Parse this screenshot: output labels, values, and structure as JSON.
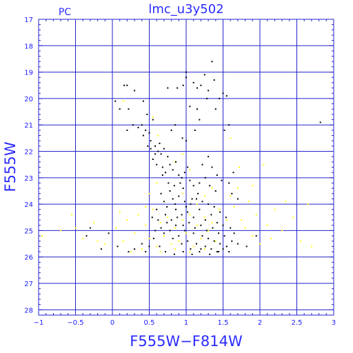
{
  "chart_data": {
    "type": "scatter",
    "title": "lmc_u3y502",
    "corner_label": "PC",
    "xlabel": "F555W−F814W",
    "ylabel": "F555W",
    "xlim": [
      -1,
      3
    ],
    "ylim": [
      28.2,
      17
    ],
    "y_inverted": true,
    "grid": true,
    "x_ticks": [
      -1,
      -0.5,
      0,
      0.5,
      1,
      1.5,
      2,
      2.5,
      3
    ],
    "x_tick_labels": [
      "−1",
      "−0.5",
      "0",
      "0.5",
      "1",
      "1.5",
      "2",
      "2.5",
      "3"
    ],
    "y_ticks": [
      17,
      18,
      19,
      20,
      21,
      22,
      23,
      24,
      25,
      26,
      27,
      28
    ],
    "y_tick_labels": [
      "17",
      "18",
      "19",
      "20",
      "21",
      "22",
      "23",
      "24",
      "25",
      "26",
      "27",
      "28"
    ],
    "colors": {
      "axes": "#2222cc",
      "grid": "#2222cc",
      "text": "#2a2aff"
    },
    "series": [
      {
        "color": "#000000",
        "points": [
          [
            0.04,
            20.1
          ],
          [
            0.16,
            19.5
          ],
          [
            0.2,
            19.5
          ],
          [
            0.3,
            19.7
          ],
          [
            0.1,
            20.4
          ],
          [
            0.22,
            20.4
          ],
          [
            0.42,
            20.1
          ],
          [
            0.47,
            20.6
          ],
          [
            0.55,
            20.8
          ],
          [
            0.28,
            21.0
          ],
          [
            0.2,
            21.2
          ],
          [
            0.35,
            21.1
          ],
          [
            0.4,
            21.0
          ],
          [
            0.45,
            21.2
          ],
          [
            0.42,
            21.4
          ],
          [
            0.5,
            21.3
          ],
          [
            0.52,
            21.6
          ],
          [
            0.48,
            21.8
          ],
          [
            0.58,
            21.8
          ],
          [
            0.62,
            22.0
          ],
          [
            0.66,
            22.1
          ],
          [
            0.7,
            21.9
          ],
          [
            0.75,
            22.2
          ],
          [
            0.55,
            22.3
          ],
          [
            0.6,
            22.5
          ],
          [
            0.68,
            22.6
          ],
          [
            0.72,
            22.8
          ],
          [
            0.78,
            22.5
          ],
          [
            0.82,
            22.7
          ],
          [
            0.86,
            22.4
          ],
          [
            0.9,
            22.9
          ],
          [
            0.94,
            23.0
          ],
          [
            0.98,
            22.8
          ],
          [
            1.02,
            22.6
          ],
          [
            1.05,
            23.1
          ],
          [
            1.1,
            23.3
          ],
          [
            1.0,
            21.6
          ],
          [
            0.95,
            21.5
          ],
          [
            1.05,
            20.3
          ],
          [
            1.15,
            20.4
          ],
          [
            1.2,
            19.5
          ],
          [
            1.3,
            19.7
          ],
          [
            1.38,
            19.3
          ],
          [
            1.28,
            20.0
          ],
          [
            1.0,
            19.2
          ],
          [
            1.0,
            19.0
          ],
          [
            1.1,
            19.4
          ],
          [
            1.15,
            19.6
          ],
          [
            0.75,
            19.6
          ],
          [
            0.88,
            19.6
          ],
          [
            0.96,
            19.5
          ],
          [
            1.25,
            19.1
          ],
          [
            1.45,
            20.0
          ],
          [
            1.5,
            19.8
          ],
          [
            1.55,
            19.9
          ],
          [
            1.4,
            20.4
          ],
          [
            1.52,
            21.2
          ],
          [
            1.58,
            21.0
          ],
          [
            1.35,
            18.6
          ],
          [
            2.82,
            20.9
          ],
          [
            1.64,
            22.8
          ],
          [
            1.58,
            23.2
          ],
          [
            1.62,
            23.6
          ],
          [
            1.7,
            23.8
          ],
          [
            0.66,
            23.6
          ],
          [
            0.7,
            23.9
          ],
          [
            0.74,
            24.1
          ],
          [
            0.78,
            23.5
          ],
          [
            0.82,
            23.8
          ],
          [
            0.86,
            24.2
          ],
          [
            0.9,
            23.7
          ],
          [
            0.94,
            24.4
          ],
          [
            0.98,
            23.9
          ],
          [
            1.02,
            24.3
          ],
          [
            1.06,
            24.0
          ],
          [
            1.1,
            24.5
          ],
          [
            1.14,
            23.8
          ],
          [
            1.18,
            24.2
          ],
          [
            1.22,
            23.9
          ],
          [
            1.26,
            24.6
          ],
          [
            1.3,
            24.0
          ],
          [
            1.34,
            24.4
          ],
          [
            1.38,
            24.1
          ],
          [
            1.42,
            24.7
          ],
          [
            1.46,
            24.3
          ],
          [
            1.5,
            24.8
          ],
          [
            1.54,
            24.5
          ],
          [
            1.6,
            24.9
          ],
          [
            0.62,
            24.6
          ],
          [
            0.66,
            24.9
          ],
          [
            0.7,
            25.1
          ],
          [
            0.74,
            24.7
          ],
          [
            0.78,
            25.0
          ],
          [
            0.82,
            25.3
          ],
          [
            0.86,
            24.8
          ],
          [
            0.9,
            25.2
          ],
          [
            0.94,
            25.5
          ],
          [
            0.98,
            25.0
          ],
          [
            1.02,
            25.4
          ],
          [
            1.06,
            25.7
          ],
          [
            1.1,
            25.1
          ],
          [
            1.14,
            25.5
          ],
          [
            1.18,
            25.8
          ],
          [
            1.22,
            25.2
          ],
          [
            1.26,
            25.6
          ],
          [
            1.3,
            25.3
          ],
          [
            1.34,
            25.7
          ],
          [
            1.38,
            25.4
          ],
          [
            1.42,
            25.8
          ],
          [
            1.46,
            25.5
          ],
          [
            1.5,
            25.7
          ],
          [
            1.55,
            25.6
          ],
          [
            1.62,
            25.4
          ],
          [
            1.65,
            25.1
          ],
          [
            1.7,
            25.5
          ],
          [
            0.56,
            25.3
          ],
          [
            0.5,
            25.6
          ],
          [
            0.45,
            25.8
          ],
          [
            0.4,
            25.5
          ],
          [
            0.3,
            25.7
          ],
          [
            0.22,
            25.8
          ],
          [
            -0.15,
            25.7
          ],
          [
            -0.35,
            25.2
          ],
          [
            -0.05,
            25.1
          ],
          [
            -0.3,
            24.9
          ],
          [
            0.07,
            25.6
          ],
          [
            1.82,
            25.6
          ],
          [
            1.95,
            25.2
          ],
          [
            0.84,
            25.9
          ],
          [
            0.96,
            25.8
          ],
          [
            1.08,
            25.9
          ],
          [
            1.2,
            25.7
          ],
          [
            1.32,
            25.9
          ],
          [
            1.44,
            25.8
          ],
          [
            1.58,
            25.8
          ],
          [
            0.72,
            25.8
          ],
          [
            0.64,
            25.6
          ],
          [
            0.58,
            25.0
          ],
          [
            0.54,
            24.5
          ],
          [
            0.6,
            24.2
          ],
          [
            0.68,
            22.9
          ],
          [
            0.58,
            22.1
          ],
          [
            0.52,
            21.9
          ],
          [
            0.64,
            21.7
          ],
          [
            0.8,
            21.2
          ],
          [
            0.85,
            21.0
          ],
          [
            1.12,
            21.2
          ],
          [
            1.18,
            20.8
          ],
          [
            1.3,
            22.2
          ],
          [
            1.22,
            22.5
          ],
          [
            1.35,
            22.6
          ],
          [
            1.42,
            22.9
          ],
          [
            1.48,
            23.1
          ],
          [
            1.26,
            23.0
          ],
          [
            1.32,
            23.3
          ],
          [
            1.4,
            23.5
          ],
          [
            1.18,
            23.2
          ],
          [
            1.16,
            23.6
          ],
          [
            0.96,
            23.4
          ],
          [
            0.92,
            23.2
          ],
          [
            0.84,
            23.3
          ],
          [
            0.76,
            23.2
          ],
          [
            0.72,
            24.4
          ],
          [
            0.8,
            24.6
          ],
          [
            0.88,
            24.5
          ],
          [
            0.96,
            24.8
          ],
          [
            1.04,
            24.7
          ],
          [
            1.12,
            24.9
          ],
          [
            1.2,
            24.8
          ],
          [
            1.28,
            25.0
          ],
          [
            1.36,
            24.9
          ],
          [
            1.44,
            25.1
          ],
          [
            1.52,
            25.2
          ],
          [
            1.0,
            24.1
          ],
          [
            1.08,
            23.8
          ],
          [
            0.85,
            24.0
          ]
        ]
      },
      {
        "color": "#ffff00",
        "points": [
          [
            -0.95,
            25.2
          ],
          [
            -0.7,
            25.0
          ],
          [
            -0.55,
            24.4
          ],
          [
            -0.4,
            25.3
          ],
          [
            -0.25,
            24.7
          ],
          [
            -0.1,
            25.5
          ],
          [
            0.05,
            24.9
          ],
          [
            0.15,
            25.4
          ],
          [
            0.2,
            24.6
          ],
          [
            0.3,
            25.1
          ],
          [
            0.35,
            24.4
          ],
          [
            0.4,
            25.7
          ],
          [
            0.45,
            24.8
          ],
          [
            0.5,
            25.3
          ],
          [
            0.55,
            24.2
          ],
          [
            0.6,
            25.6
          ],
          [
            0.65,
            24.7
          ],
          [
            0.7,
            25.2
          ],
          [
            0.75,
            24.5
          ],
          [
            0.8,
            25.5
          ],
          [
            0.85,
            24.9
          ],
          [
            0.9,
            25.4
          ],
          [
            0.95,
            24.6
          ],
          [
            1.0,
            25.1
          ],
          [
            1.05,
            24.4
          ],
          [
            1.1,
            25.6
          ],
          [
            1.15,
            24.8
          ],
          [
            1.2,
            25.3
          ],
          [
            1.25,
            24.5
          ],
          [
            1.3,
            25.0
          ],
          [
            1.35,
            24.7
          ],
          [
            1.4,
            25.4
          ],
          [
            1.45,
            24.2
          ],
          [
            1.5,
            25.7
          ],
          [
            1.55,
            24.6
          ],
          [
            1.6,
            23.7
          ],
          [
            1.65,
            24.1
          ],
          [
            1.7,
            23.4
          ],
          [
            1.75,
            24.6
          ],
          [
            1.8,
            24.9
          ],
          [
            1.85,
            23.9
          ],
          [
            1.9,
            25.2
          ],
          [
            1.95,
            24.4
          ],
          [
            2.0,
            25.5
          ],
          [
            2.1,
            24.8
          ],
          [
            2.15,
            25.3
          ],
          [
            2.2,
            24.2
          ],
          [
            2.3,
            25.0
          ],
          [
            2.35,
            23.9
          ],
          [
            2.45,
            24.5
          ],
          [
            2.55,
            25.4
          ],
          [
            2.65,
            24.0
          ],
          [
            2.7,
            25.6
          ],
          [
            1.6,
            21.5
          ],
          [
            1.72,
            22.6
          ],
          [
            2.05,
            22.5
          ],
          [
            1.9,
            23.3
          ],
          [
            0.75,
            22.2
          ],
          [
            0.85,
            22.4
          ],
          [
            0.95,
            22.1
          ],
          [
            1.05,
            22.7
          ],
          [
            0.62,
            21.4
          ],
          [
            0.55,
            20.7
          ],
          [
            0.15,
            20.1
          ],
          [
            0.5,
            23.6
          ],
          [
            0.45,
            24.1
          ],
          [
            0.6,
            23.2
          ],
          [
            0.7,
            23.9
          ],
          [
            0.95,
            23.6
          ],
          [
            1.15,
            24.0
          ],
          [
            1.25,
            23.7
          ],
          [
            1.35,
            23.4
          ],
          [
            0.65,
            25.8
          ],
          [
            0.85,
            25.7
          ],
          [
            1.05,
            25.8
          ],
          [
            1.25,
            25.7
          ],
          [
            -0.5,
            24.9
          ],
          [
            -0.2,
            25.4
          ],
          [
            0.1,
            24.3
          ],
          [
            0.25,
            25.8
          ]
        ]
      }
    ]
  }
}
